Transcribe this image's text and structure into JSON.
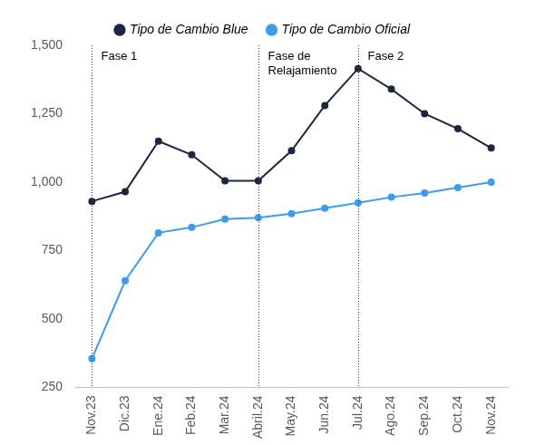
{
  "chart_data": {
    "type": "line",
    "categories": [
      "Nov.23",
      "Dic.23",
      "Ene.24",
      "Feb.24",
      "Mar.24",
      "Abril.24",
      "May.24",
      "Jun.24",
      "Jul.24",
      "Ago.24",
      "Sep.24",
      "Oct.24",
      "Nov.24"
    ],
    "series": [
      {
        "name": "Tipo de Cambio Blue",
        "color": "#1b2640",
        "marker": "circle",
        "values": [
          930,
          965,
          1150,
          1100,
          1005,
          1005,
          1115,
          1280,
          1415,
          1340,
          1250,
          1195,
          1125
        ]
      },
      {
        "name": "Tipo de Cambio Oficial",
        "color": "#3b9cf0",
        "marker": "circle",
        "values": [
          355,
          640,
          815,
          835,
          865,
          870,
          885,
          905,
          925,
          945,
          960,
          980,
          1000
        ]
      }
    ],
    "ylim": [
      250,
      1500
    ],
    "yticks": [
      250,
      500,
      750,
      1000,
      1250,
      1500
    ],
    "grid": false,
    "legend": "top",
    "annotations": [
      {
        "text": "Fase 1",
        "x": "Nov.23"
      },
      {
        "text": "Fase de Relajamiento",
        "x": "Abril.24"
      },
      {
        "text": "Fase 2",
        "x": "Jul.24"
      }
    ]
  }
}
